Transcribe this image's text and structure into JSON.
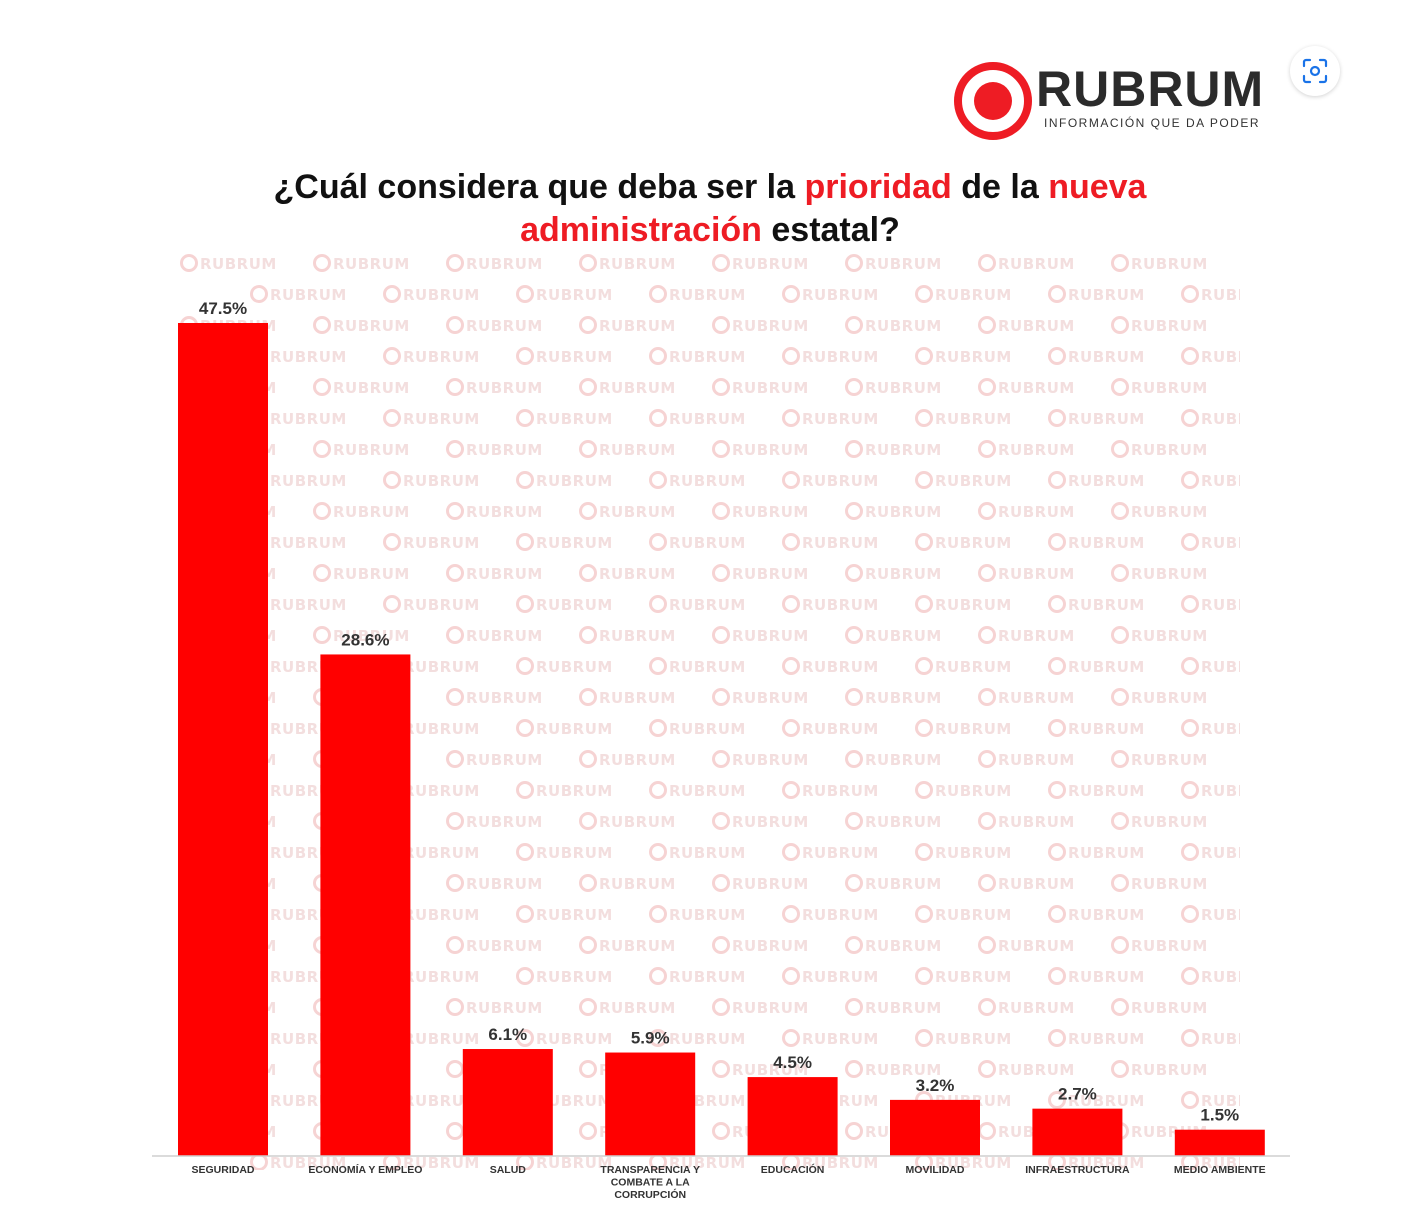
{
  "logo": {
    "name": "RUBRUM",
    "tagline": "INFORMACIÓN QUE DA PODER"
  },
  "watermark": {
    "text": "RUBRUM"
  },
  "title": {
    "part1": "¿Cuál considera que deba ser la ",
    "part2": "prioridad",
    "part3": " de la ",
    "part4": "nueva",
    "part5": "administración",
    "part6": " estatal?"
  },
  "colors": {
    "bar": "#ff0000",
    "accent": "#ee1c24",
    "text": "#111111"
  },
  "lens_button": {
    "icon": "lens-icon"
  },
  "chart_data": {
    "type": "bar",
    "categories": [
      [
        "SEGURIDAD"
      ],
      [
        "ECONOMÍA Y EMPLEO"
      ],
      [
        "SALUD"
      ],
      [
        "TRANSPARENCIA Y",
        "COMBATE A LA",
        "CORRUPCIÓN"
      ],
      [
        "EDUCACIÓN"
      ],
      [
        "MOVILIDAD"
      ],
      [
        "INFRAESTRUCTURA"
      ],
      [
        "MEDIO AMBIENTE"
      ]
    ],
    "values": [
      47.5,
      28.6,
      6.1,
      5.9,
      4.5,
      3.2,
      2.7,
      1.5
    ],
    "value_labels": [
      "47.5%",
      "28.6%",
      "6.1%",
      "5.9%",
      "4.5%",
      "3.2%",
      "2.7%",
      "1.5%"
    ],
    "xlabel": "",
    "ylabel": "",
    "ylim": [
      0,
      47.5
    ],
    "grid": false
  }
}
